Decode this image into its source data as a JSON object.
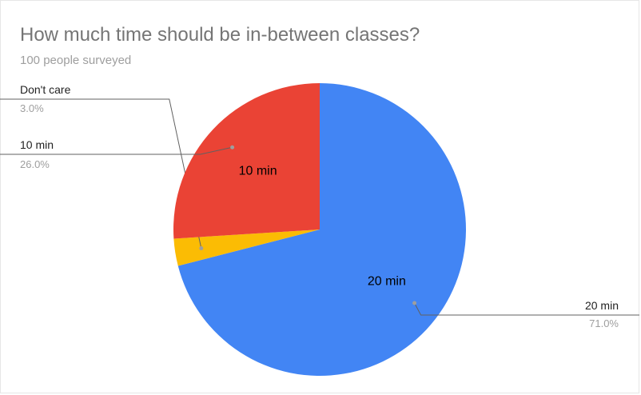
{
  "chart_data": {
    "type": "pie",
    "title": "How much time should be in-between classes?",
    "subtitle": "100 people surveyed",
    "slices": [
      {
        "label": "20 min",
        "percent_label": "71.0%",
        "value": 71.0,
        "color": "#4285f4",
        "inner_label": "20 min"
      },
      {
        "label": "Don't care",
        "percent_label": "3.0%",
        "value": 3.0,
        "color": "#fbbc04",
        "inner_label": ""
      },
      {
        "label": "10 min",
        "percent_label": "26.0%",
        "value": 26.0,
        "color": "#ea4335",
        "inner_label": "10 min"
      }
    ],
    "legend": "labeled-callouts"
  }
}
